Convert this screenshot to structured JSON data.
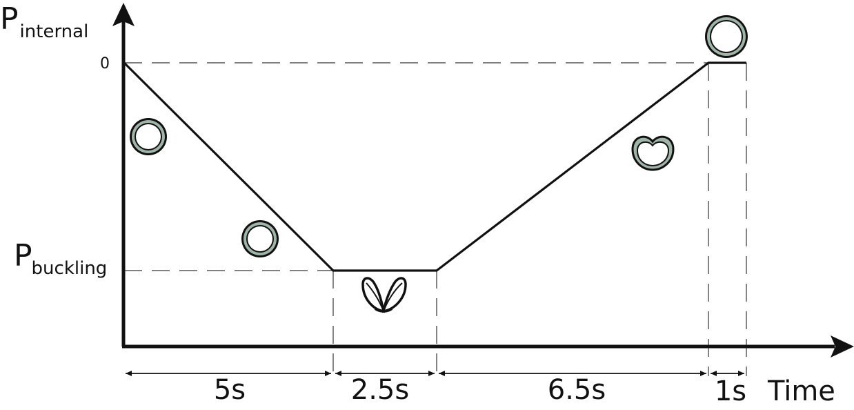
{
  "y_axis": {
    "label_main": "P",
    "label_sub": "internal",
    "zero_label": "0",
    "buckling_main": "P",
    "buckling_sub": "buckling"
  },
  "x_axis": {
    "label": "Time"
  },
  "phases": [
    {
      "duration_label": "5s",
      "duration": 5,
      "trend": "decreasing"
    },
    {
      "duration_label": "2.5s",
      "duration": 2.5,
      "trend": "constant at buckling pressure"
    },
    {
      "duration_label": "6.5s",
      "duration": 6.5,
      "trend": "increasing"
    },
    {
      "duration_label": "1s",
      "duration": 1,
      "trend": "constant at zero"
    }
  ],
  "shapes": [
    {
      "name": "ring-shape-1",
      "state": "round"
    },
    {
      "name": "ring-shape-2",
      "state": "round"
    },
    {
      "name": "buckled-shape",
      "state": "collapsed"
    },
    {
      "name": "recovering-shape",
      "state": "partially recovered"
    },
    {
      "name": "final-ring-shape",
      "state": "round"
    }
  ],
  "colors": {
    "line": "#111111",
    "ring_fill": "#9fb5a8",
    "guide": "#333333"
  }
}
